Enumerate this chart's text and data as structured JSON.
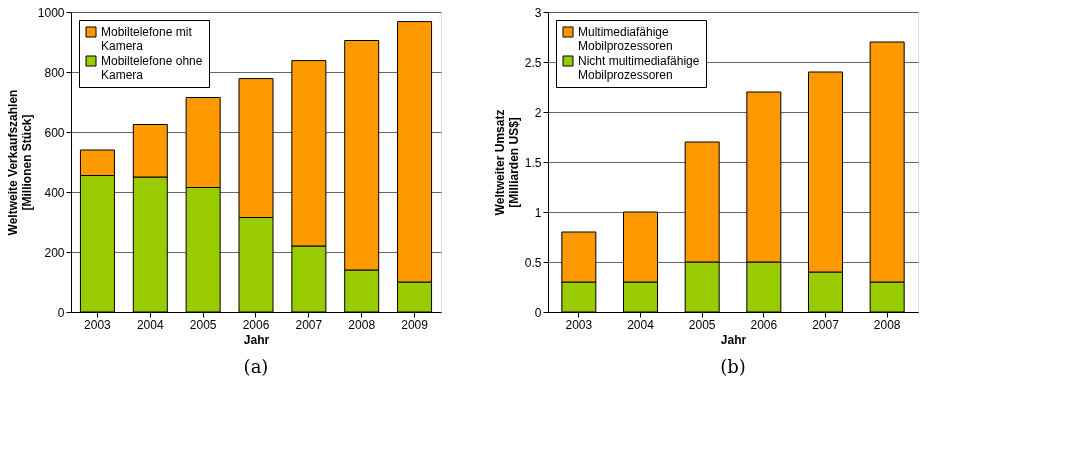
{
  "chart_data": [
    {
      "type": "bar",
      "stacked": true,
      "xlabel": "Jahr",
      "ylabel": "Weltweite Verkaufszahlen [Millionen Stück]",
      "annotations": [
        "(a)"
      ],
      "categories": [
        "2003",
        "2004",
        "2005",
        "2006",
        "2007",
        "2008",
        "2009"
      ],
      "series": [
        {
          "name": "Mobiltelefone ohne Kamera",
          "color": "#99cc00",
          "values": [
            455,
            450,
            415,
            315,
            220,
            140,
            100
          ]
        },
        {
          "name": "Mobiltelefone mit Kamera",
          "color": "#ff9900",
          "values": [
            85,
            175,
            300,
            463,
            618,
            765,
            868
          ]
        }
      ],
      "ylim": [
        0,
        1000
      ],
      "yticks": [
        0,
        200,
        400,
        600,
        800,
        1000
      ],
      "grid": "y",
      "legend": "top left"
    },
    {
      "type": "bar",
      "stacked": true,
      "xlabel": "Jahr",
      "ylabel": "Weltweiter Umsatz [Milliarden US$]",
      "annotations": [
        "(b)"
      ],
      "categories": [
        "2003",
        "2004",
        "2005",
        "2006",
        "2007",
        "2008"
      ],
      "series": [
        {
          "name": "Nicht multimediafähige Mobilprozessoren",
          "color": "#99cc00",
          "values": [
            0.3,
            0.3,
            0.5,
            0.5,
            0.4,
            0.3
          ]
        },
        {
          "name": "Multimediafähige Mobilprozessoren",
          "color": "#ff9900",
          "values": [
            0.5,
            0.7,
            1.2,
            1.7,
            2.0,
            2.4
          ]
        }
      ],
      "ylim": [
        0,
        3
      ],
      "yticks": [
        0,
        0.5,
        1,
        1.5,
        2,
        2.5,
        3
      ],
      "grid": "y",
      "legend": "top left"
    }
  ]
}
